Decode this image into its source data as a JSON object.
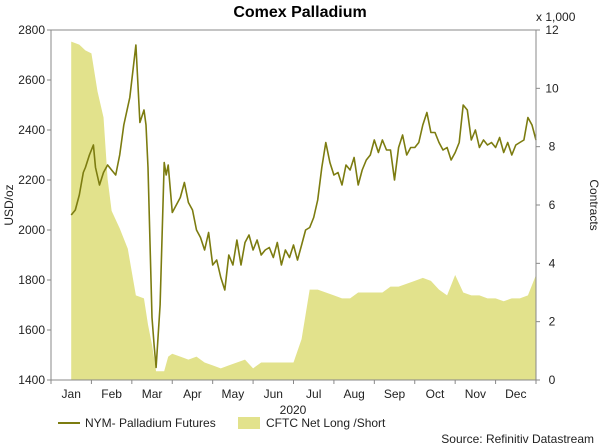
{
  "chart_data": {
    "type": "line",
    "title": "Comex Palladium",
    "xlabel": "2020",
    "ylabel": "USD/oz",
    "y2label": "Contracts",
    "y2_multiplier": "x 1,000",
    "source": "Source: Refinitiv Datastream",
    "grid": false,
    "legend_position": "bottom",
    "categories": [
      "Jan",
      "Feb",
      "Mar",
      "Apr",
      "May",
      "Jun",
      "Jul",
      "Aug",
      "Sep",
      "Oct",
      "Nov",
      "Dec"
    ],
    "ylim": [
      1400,
      2800
    ],
    "yticks": [
      1400,
      1600,
      1800,
      2000,
      2200,
      2400,
      2600,
      2800
    ],
    "y2lim": [
      0,
      12
    ],
    "y2ticks": [
      0,
      2,
      4,
      6,
      8,
      10,
      12
    ],
    "series": [
      {
        "name": "NYM- Palladium Futures",
        "axis": "left",
        "type": "line",
        "color": "#7c7c10",
        "x": [
          0,
          0.1,
          0.2,
          0.3,
          0.35,
          0.45,
          0.55,
          0.6,
          0.7,
          0.8,
          0.9,
          1.0,
          1.1,
          1.2,
          1.3,
          1.45,
          1.6,
          1.7,
          1.8,
          1.85,
          1.9,
          2.0,
          2.05,
          2.1,
          2.2,
          2.3,
          2.35,
          2.4,
          2.5,
          2.6,
          2.7,
          2.8,
          2.9,
          3.0,
          3.1,
          3.2,
          3.3,
          3.4,
          3.5,
          3.6,
          3.7,
          3.8,
          3.9,
          4.0,
          4.1,
          4.2,
          4.3,
          4.4,
          4.5,
          4.6,
          4.7,
          4.8,
          4.9,
          5.0,
          5.1,
          5.2,
          5.3,
          5.4,
          5.5,
          5.6,
          5.7,
          5.8,
          5.9,
          6.0,
          6.1,
          6.2,
          6.3,
          6.4,
          6.5,
          6.6,
          6.7,
          6.8,
          6.9,
          7.0,
          7.1,
          7.2,
          7.3,
          7.4,
          7.5,
          7.6,
          7.7,
          7.8,
          7.9,
          8.0,
          8.1,
          8.2,
          8.3,
          8.4,
          8.5,
          8.6,
          8.7,
          8.8,
          8.9,
          9.0,
          9.1,
          9.2,
          9.3,
          9.4,
          9.5,
          9.6,
          9.7,
          9.8,
          9.9,
          10.0,
          10.1,
          10.2,
          10.3,
          10.4,
          10.5,
          10.6,
          10.7,
          10.8,
          10.9,
          11.0,
          11.1,
          11.2,
          11.3,
          11.4,
          11.5
        ],
        "y": [
          2060,
          2080,
          2140,
          2230,
          2250,
          2300,
          2340,
          2250,
          2180,
          2230,
          2260,
          2240,
          2220,
          2300,
          2420,
          2530,
          2740,
          2430,
          2480,
          2420,
          2250,
          1650,
          1540,
          1450,
          1700,
          2270,
          2220,
          2260,
          2070,
          2100,
          2130,
          2190,
          2110,
          2080,
          2000,
          1970,
          1920,
          1990,
          1860,
          1880,
          1810,
          1760,
          1900,
          1860,
          1960,
          1860,
          1950,
          1980,
          1920,
          1960,
          1900,
          1920,
          1930,
          1890,
          1950,
          1860,
          1920,
          1890,
          1940,
          1880,
          1940,
          2000,
          2010,
          2050,
          2120,
          2250,
          2350,
          2270,
          2220,
          2230,
          2180,
          2260,
          2240,
          2290,
          2180,
          2240,
          2280,
          2300,
          2360,
          2310,
          2360,
          2320,
          2320,
          2200,
          2330,
          2380,
          2300,
          2330,
          2330,
          2350,
          2420,
          2470,
          2390,
          2390,
          2350,
          2320,
          2330,
          2280,
          2310,
          2350,
          2500,
          2480,
          2360,
          2400,
          2330,
          2360,
          2340,
          2350,
          2330,
          2370,
          2310,
          2350,
          2300,
          2340,
          2350,
          2360,
          2450,
          2420,
          2360
        ]
      },
      {
        "name": "CFTC Net Long /Short",
        "axis": "right",
        "type": "area",
        "color": "#e2e28c",
        "x": [
          0,
          0.2,
          0.35,
          0.5,
          0.65,
          0.8,
          0.9,
          1.0,
          1.2,
          1.4,
          1.6,
          1.8,
          1.9,
          2.0,
          2.1,
          2.2,
          2.3,
          2.4,
          2.5,
          2.7,
          2.9,
          3.1,
          3.3,
          3.5,
          3.7,
          3.9,
          4.1,
          4.3,
          4.5,
          4.7,
          4.9,
          5.1,
          5.3,
          5.5,
          5.7,
          5.9,
          6.1,
          6.3,
          6.5,
          6.7,
          6.9,
          7.1,
          7.3,
          7.5,
          7.7,
          7.9,
          8.1,
          8.3,
          8.5,
          8.7,
          8.9,
          9.1,
          9.3,
          9.5,
          9.7,
          9.9,
          10.1,
          10.3,
          10.5,
          10.7,
          10.9,
          11.1,
          11.3,
          11.5
        ],
        "y": [
          11.6,
          11.5,
          11.3,
          11.2,
          9.9,
          9.0,
          6.9,
          5.8,
          5.2,
          4.5,
          2.9,
          2.8,
          1.9,
          1.2,
          0.3,
          0.3,
          0.3,
          0.8,
          0.9,
          0.8,
          0.7,
          0.8,
          0.6,
          0.5,
          0.4,
          0.5,
          0.6,
          0.7,
          0.4,
          0.6,
          0.6,
          0.6,
          0.6,
          0.6,
          1.4,
          3.1,
          3.1,
          3.0,
          2.9,
          2.8,
          2.8,
          3.0,
          3.0,
          3.0,
          3.0,
          3.2,
          3.2,
          3.3,
          3.4,
          3.5,
          3.4,
          3.1,
          2.9,
          3.6,
          3.0,
          2.9,
          2.9,
          2.8,
          2.8,
          2.7,
          2.8,
          2.8,
          2.9,
          3.6
        ]
      }
    ]
  }
}
